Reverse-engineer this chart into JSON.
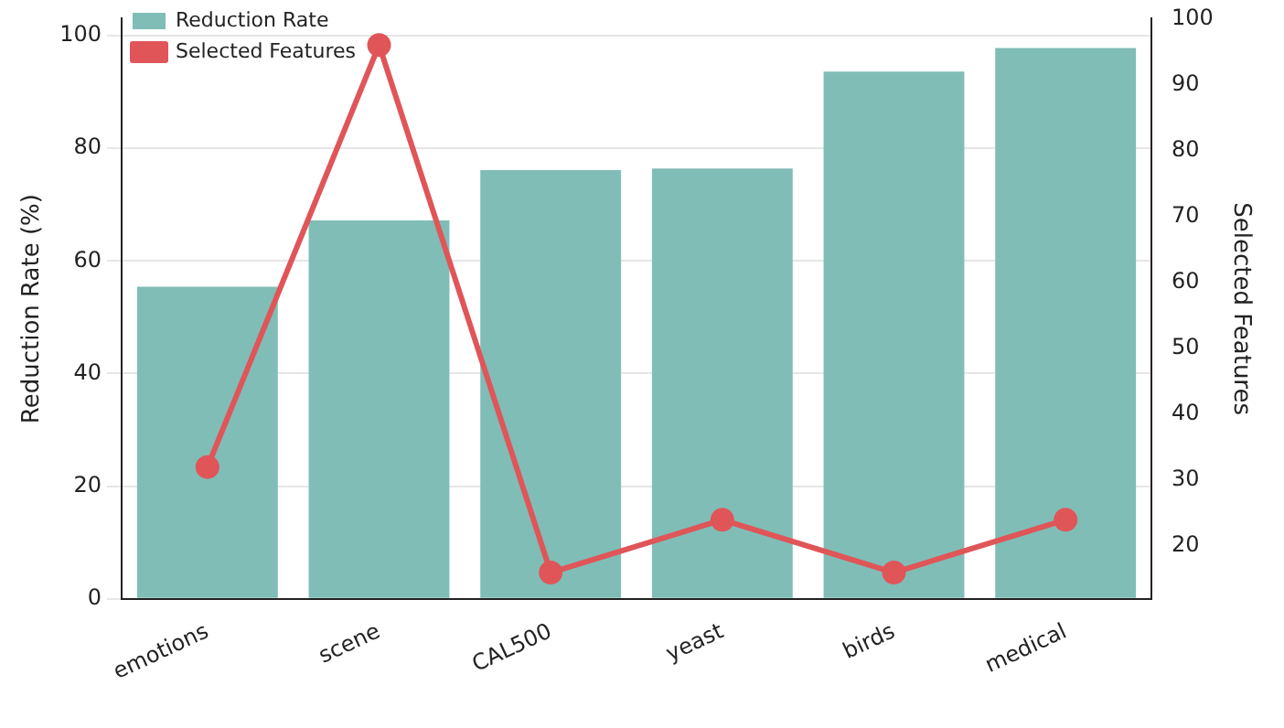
{
  "chart_data": {
    "type": "bar",
    "categories": [
      "emotions",
      "scene",
      "CAL500",
      "yeast",
      "birds",
      "medical"
    ],
    "series": [
      {
        "name": "Reduction Rate",
        "color": "#80bdb6",
        "values": [
          55.4,
          67.2,
          76.1,
          76.4,
          93.6,
          97.8
        ]
      },
      {
        "name": "Selected Features",
        "type": "line",
        "axis": "y2",
        "color": "#e05558",
        "values": [
          32,
          96,
          16,
          24,
          16,
          24
        ]
      }
    ],
    "ylabel": "Reduction Rate (%)",
    "y2label": "Selected Features",
    "ylim": [
      0,
      103
    ],
    "yticks": [
      0,
      20,
      40,
      60,
      80,
      100
    ],
    "y2lim": [
      12,
      100
    ],
    "y2ticks": [
      20,
      30,
      40,
      50,
      60,
      70,
      80,
      90,
      100
    ],
    "grid": "y",
    "legend": "top left",
    "marker": "circle",
    "line_style": "solid"
  }
}
